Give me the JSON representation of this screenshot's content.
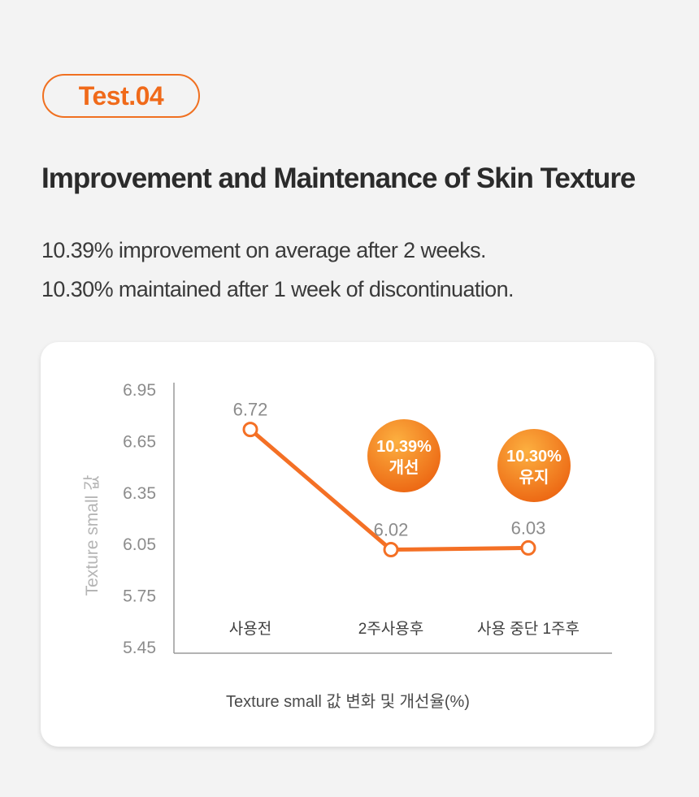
{
  "badge": "Test.04",
  "title": "Improvement and Maintenance of Skin Texture",
  "description": [
    "10.39% improvement on average after 2 weeks.",
    "10.30% maintained after 1 week of discontinuation."
  ],
  "colors": {
    "accent": "#f06a1a",
    "line": "#f47025",
    "bubble_light": "#fba13a",
    "bubble_dark": "#ee6a14"
  },
  "chart_data": {
    "type": "line",
    "categories": [
      "사용전",
      "2주사용후",
      "사용 중단 1주후"
    ],
    "values": [
      6.72,
      6.02,
      6.03
    ],
    "data_labels": [
      "6.72",
      "6.02",
      "6.03"
    ],
    "ylabel": "Texture small 값",
    "xlabel": "",
    "yticks": [
      "6.95",
      "6.65",
      "6.35",
      "6.05",
      "5.75",
      "5.45"
    ],
    "ylim": [
      5.45,
      6.95
    ],
    "caption": "Texture small 값 변화 및 개선율(%)",
    "annotations": [
      {
        "category": "2주사용후",
        "lines": [
          "10.39%",
          "개선"
        ]
      },
      {
        "category": "사용 중단 1주후",
        "lines": [
          "10.30%",
          "유지"
        ]
      }
    ],
    "grid": false
  }
}
